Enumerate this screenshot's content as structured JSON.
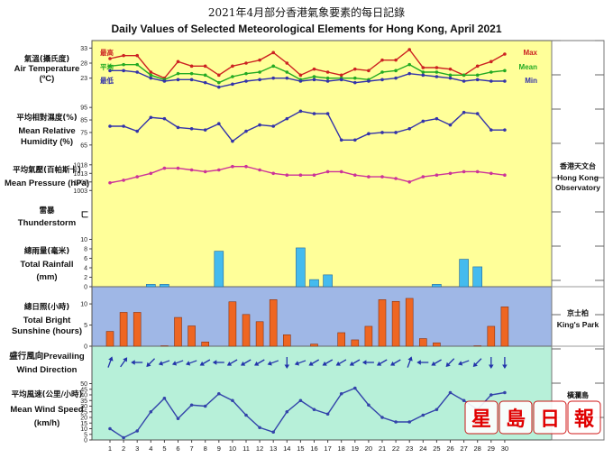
{
  "title_zh": "2021年4月部分香港氣象要素的每日記錄",
  "title_en": "Daily Values of Selected Meteorological Elements for Hong Kong, April 2021",
  "days": [
    1,
    2,
    3,
    4,
    5,
    6,
    7,
    8,
    9,
    10,
    11,
    12,
    13,
    14,
    15,
    16,
    17,
    18,
    19,
    20,
    21,
    22,
    23,
    24,
    25,
    26,
    27,
    28,
    29,
    30
  ],
  "stations": {
    "observatory_zh": "香港天文台",
    "observatory_en": "Hong Kong Observatory",
    "kings_park_zh": "京士柏",
    "kings_park_en": "King's Park",
    "waglan_zh": "橫瀾島"
  },
  "panel_colors": {
    "top": "#ffff99",
    "sunshine": "#9fb7e6",
    "wind": "#b7f0d9"
  },
  "chart_data": [
    {
      "type": "line",
      "panel": "air_temperature",
      "label_zh": "氣溫(攝氏度)",
      "label_en": "Air Temperature",
      "unit": "(ºC)",
      "yticks": [
        33,
        28,
        23
      ],
      "ylim": [
        19,
        34
      ],
      "series": [
        {
          "name": "Max",
          "name_zh": "最高",
          "color": "#cc2222",
          "values": [
            29.5,
            30.5,
            30.5,
            25,
            23,
            28.5,
            27,
            27,
            24,
            27,
            28,
            29,
            31.5,
            28,
            24,
            26,
            25,
            24,
            26,
            25.5,
            29,
            29,
            32.5,
            26.5,
            26.5,
            26,
            24,
            27,
            28.5,
            31
          ]
        },
        {
          "name": "Mean",
          "name_zh": "平均",
          "color": "#22aa22",
          "values": [
            27,
            27.5,
            27.5,
            24,
            22.5,
            24.5,
            24.5,
            24,
            21.5,
            23.5,
            24.5,
            25,
            27,
            25,
            22.5,
            23.5,
            23,
            23,
            23,
            22.5,
            25,
            25.5,
            27.5,
            25,
            25,
            24,
            24,
            24,
            25,
            25.5
          ]
        },
        {
          "name": "Min",
          "name_zh": "最低",
          "color": "#3333aa",
          "values": [
            25.5,
            25.5,
            25,
            23,
            22,
            22.5,
            22.5,
            21.5,
            20,
            21,
            22,
            22.5,
            23,
            23,
            22,
            22.5,
            22,
            22.5,
            21.5,
            22,
            22.5,
            23,
            24.5,
            24,
            23.5,
            23,
            22,
            22.5,
            22,
            22
          ]
        }
      ]
    },
    {
      "type": "line",
      "panel": "relative_humidity",
      "label_zh": "平均相對濕度(%)",
      "label_en": "Mean Relative Humidity (%)",
      "yticks": [
        95,
        85,
        75,
        65
      ],
      "ylim": [
        62,
        98
      ],
      "series": [
        {
          "name": "",
          "color": "#3333aa",
          "values": [
            80,
            80,
            76,
            87,
            86,
            79,
            78,
            77,
            82,
            68,
            76,
            81,
            80,
            86,
            92,
            90,
            90,
            69,
            69,
            74,
            75,
            75,
            78,
            84,
            86,
            81,
            91,
            90,
            77,
            77
          ]
        }
      ]
    },
    {
      "type": "line",
      "panel": "mean_pressure",
      "label_zh": "平均氣壓(百帕斯卡)",
      "label_en": "Mean Pressure (hPa)",
      "yticks": [
        1018,
        1013,
        1008,
        1003
      ],
      "ylim": [
        1000,
        1020
      ],
      "series": [
        {
          "name": "",
          "color": "#cc3399",
          "values": [
            1007.5,
            1009,
            1011,
            1013,
            1016,
            1016,
            1015,
            1014,
            1015,
            1017,
            1017,
            1015,
            1013,
            1012,
            1012,
            1012,
            1014,
            1014,
            1012,
            1011,
            1011,
            1010,
            1008,
            1011,
            1012,
            1013,
            1014,
            1014,
            1013,
            1012
          ]
        }
      ]
    },
    {
      "type": "scatter",
      "panel": "thunderstorm",
      "label_zh": "雷暴",
      "label_en": "Thunderstorm",
      "symbol": "ㄈ",
      "days_with_event": []
    },
    {
      "type": "bar",
      "panel": "total_rainfall",
      "label_zh": "總雨量(毫米)",
      "label_en": "Total Rainfall (mm)",
      "yticks": [
        10,
        8,
        6,
        4,
        2,
        0
      ],
      "ylim": [
        0,
        12
      ],
      "color": "#44bbee",
      "values": [
        0,
        0,
        0,
        0.5,
        0.5,
        0,
        0,
        0,
        7.5,
        0,
        0,
        0,
        0,
        0,
        8.2,
        1.5,
        2.5,
        0,
        0,
        0,
        0,
        0,
        0,
        0,
        0.5,
        0,
        5.8,
        4.2,
        0,
        0
      ]
    },
    {
      "type": "bar",
      "panel": "total_bright_sunshine",
      "label_zh": "總日照(小時)",
      "label_en": "Total Bright Sunshine (hours)",
      "yticks": [
        10,
        5,
        0
      ],
      "ylim": [
        0,
        13
      ],
      "color": "#ee6622",
      "values": [
        3.5,
        8,
        8,
        0,
        0.1,
        6.8,
        4.8,
        1,
        0,
        10.5,
        7.5,
        5.8,
        11,
        2.7,
        0,
        0.5,
        0,
        3.2,
        1.5,
        4.7,
        11,
        10.6,
        11.3,
        1.8,
        0.8,
        0,
        0,
        0.1,
        4.7,
        9.3
      ]
    },
    {
      "type": "scatter",
      "panel": "prevailing_wind_direction",
      "label_zh": "盛行風向",
      "label_en": "Prevailing Wind Direction",
      "unit": "degrees (direction wind blows from)",
      "values": [
        200,
        215,
        90,
        45,
        70,
        70,
        70,
        60,
        90,
        60,
        60,
        60,
        70,
        360,
        70,
        60,
        60,
        60,
        60,
        90,
        60,
        60,
        200,
        90,
        60,
        45,
        70,
        45,
        360,
        360
      ]
    },
    {
      "type": "line",
      "panel": "mean_wind_speed",
      "label_zh": "平均風速(公里/小時)",
      "label_en": "Mean Wind Speed (km/h)",
      "yticks": [
        50,
        45,
        40,
        35,
        30,
        25,
        20,
        15,
        10,
        5,
        0
      ],
      "ylim": [
        0,
        52
      ],
      "series": [
        {
          "name": "",
          "color": "#3344aa",
          "values": [
            10,
            2,
            8,
            25,
            37,
            19,
            31,
            30,
            41,
            35,
            22,
            11,
            7,
            25,
            35,
            27,
            23,
            41,
            46,
            31,
            20,
            16,
            16,
            22,
            27,
            42,
            35,
            27,
            40,
            42
          ]
        }
      ]
    }
  ],
  "watermark_logo": "星島日報"
}
